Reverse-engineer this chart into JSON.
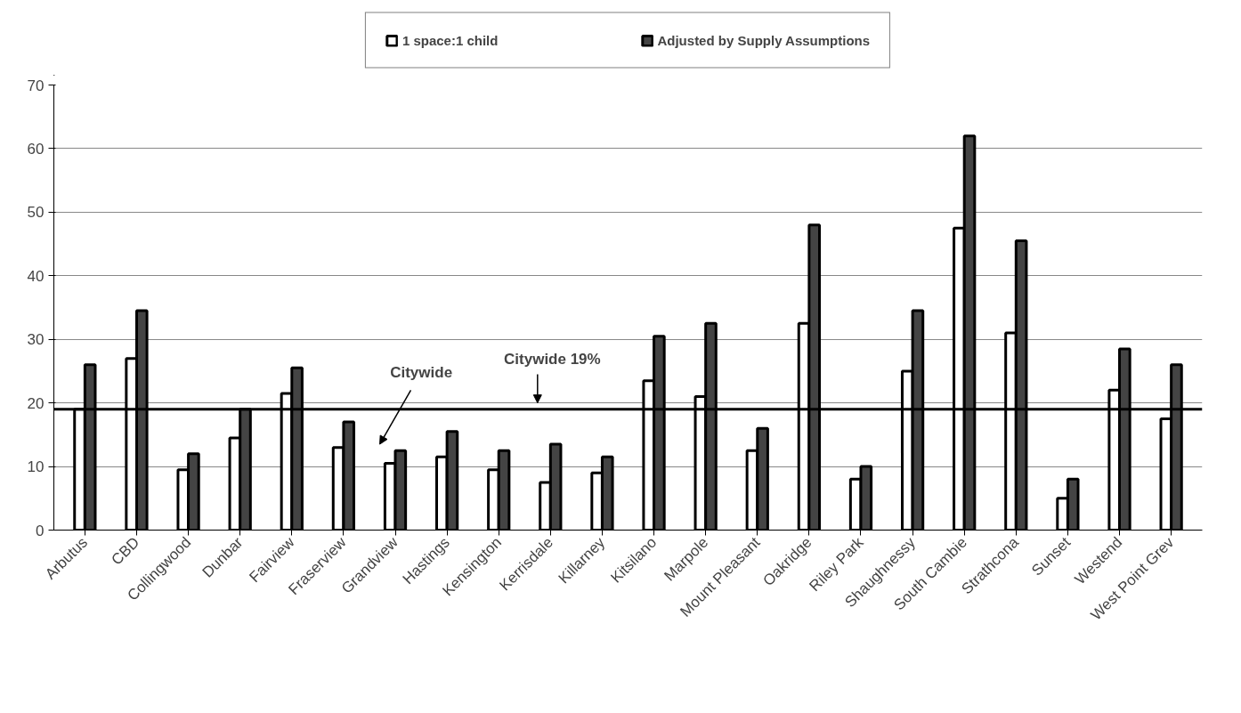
{
  "chart_data": {
    "type": "bar",
    "categories": [
      "Arbutus",
      "CBD",
      "Collingwood",
      "Dunbar",
      "Fairview",
      "Fraserview",
      "Grandview",
      "Hastings",
      "Kensington",
      "Kerrisdale",
      "Killarney",
      "Kitsilano",
      "Marpole",
      "Mount Pleasant",
      "Oakridge",
      "Riley Park",
      "Shaughnessy",
      "South Cambie",
      "Strathcona",
      "Sunset",
      "Westend",
      "West Point Grev"
    ],
    "series": [
      {
        "name": "1 space:1 child",
        "color": "#ffffff",
        "values": [
          19,
          27,
          9.5,
          14.5,
          21.5,
          13,
          10.5,
          11.5,
          9.5,
          7.5,
          9,
          23.5,
          21,
          12.5,
          32.5,
          8,
          25,
          47.5,
          31,
          5,
          22,
          17.5
        ]
      },
      {
        "name": "Adjusted by Supply Assumptions",
        "color": "#444444",
        "values": [
          26,
          34.5,
          12,
          19,
          25.5,
          17,
          12.5,
          15.5,
          12.5,
          13.5,
          11.5,
          30.5,
          32.5,
          16,
          48,
          10,
          34.5,
          62,
          45.5,
          8,
          28.5,
          26
        ]
      }
    ],
    "ylim": [
      0,
      70
    ],
    "yticks": [
      0,
      10,
      20,
      30,
      40,
      50,
      60,
      70
    ],
    "ref_lines": [
      {
        "axis": "y",
        "value": 19,
        "label": "Citywide 19%",
        "color": "#000000"
      }
    ],
    "annotations": [
      "Citywide"
    ],
    "grid": "y",
    "legend": "top"
  }
}
